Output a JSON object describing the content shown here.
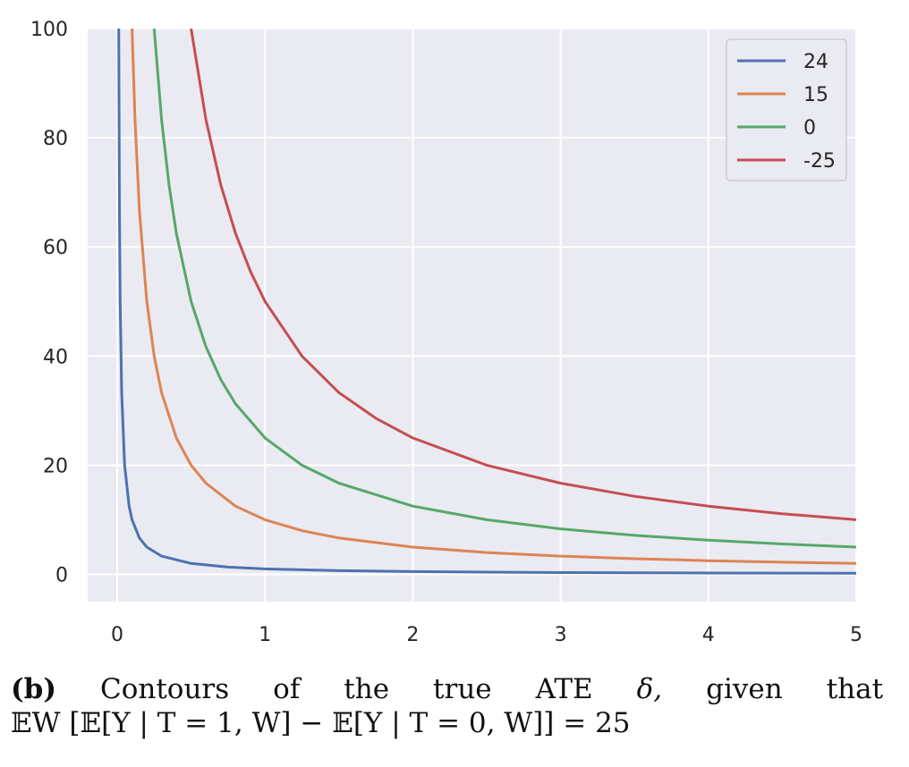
{
  "chart_data": {
    "type": "line",
    "xlim": [
      -0.2,
      5
    ],
    "ylim": [
      -5,
      100
    ],
    "x_ticks": [
      0,
      1,
      2,
      3,
      4,
      5
    ],
    "x_tick_labels": [
      "0",
      "1",
      "2",
      "3",
      "4",
      "5"
    ],
    "y_ticks": [
      0,
      20,
      40,
      60,
      80,
      100
    ],
    "y_tick_labels": [
      "0",
      "20",
      "40",
      "60",
      "80",
      "100"
    ],
    "grid": true,
    "legend_position": "top-right",
    "series": [
      {
        "name": "24",
        "color": "#4c72b0",
        "x": [
          0.01,
          0.015,
          0.02,
          0.03,
          0.05,
          0.08,
          0.1,
          0.15,
          0.2,
          0.3,
          0.5,
          0.75,
          1,
          1.5,
          2,
          2.5,
          3,
          3.5,
          4,
          4.5,
          5
        ],
        "y": [
          100,
          66.7,
          50,
          33.3,
          20,
          12.5,
          10,
          6.67,
          5,
          3.33,
          2,
          1.33,
          1,
          0.67,
          0.5,
          0.4,
          0.33,
          0.29,
          0.25,
          0.22,
          0.2
        ]
      },
      {
        "name": "15",
        "color": "#dd8452",
        "x": [
          0.1,
          0.12,
          0.15,
          0.2,
          0.25,
          0.3,
          0.4,
          0.5,
          0.6,
          0.8,
          1,
          1.25,
          1.5,
          2,
          2.5,
          3,
          3.5,
          4,
          4.5,
          5
        ],
        "y": [
          100,
          83.3,
          66.7,
          50,
          40,
          33.3,
          25,
          20,
          16.7,
          12.5,
          10,
          8,
          6.67,
          5,
          4,
          3.33,
          2.86,
          2.5,
          2.22,
          2
        ]
      },
      {
        "name": "0",
        "color": "#55a868",
        "x": [
          0.25,
          0.3,
          0.35,
          0.4,
          0.5,
          0.6,
          0.7,
          0.8,
          1,
          1.25,
          1.5,
          2,
          2.5,
          3,
          3.5,
          4,
          4.5,
          5
        ],
        "y": [
          100,
          83.3,
          71.4,
          62.5,
          50,
          41.7,
          35.7,
          31.25,
          25,
          20,
          16.7,
          12.5,
          10,
          8.33,
          7.14,
          6.25,
          5.56,
          5
        ]
      },
      {
        "name": "-25",
        "color": "#c44e52",
        "x": [
          0.5,
          0.6,
          0.7,
          0.8,
          0.9,
          1,
          1.25,
          1.5,
          1.75,
          2,
          2.5,
          3,
          3.5,
          4,
          4.5,
          5
        ],
        "y": [
          100,
          83.3,
          71.4,
          62.5,
          55.6,
          50,
          40,
          33.3,
          28.6,
          25,
          20,
          16.7,
          14.3,
          12.5,
          11.1,
          10
        ]
      }
    ]
  },
  "caption": {
    "label": "(b)",
    "words": [
      "Contours",
      "of",
      "the",
      "true",
      "ATE",
      "δ,",
      "given",
      "that"
    ],
    "line2": "𝔼W [𝔼[Y | T = 1, W] − 𝔼[Y | T = 0, W]] = 25"
  }
}
